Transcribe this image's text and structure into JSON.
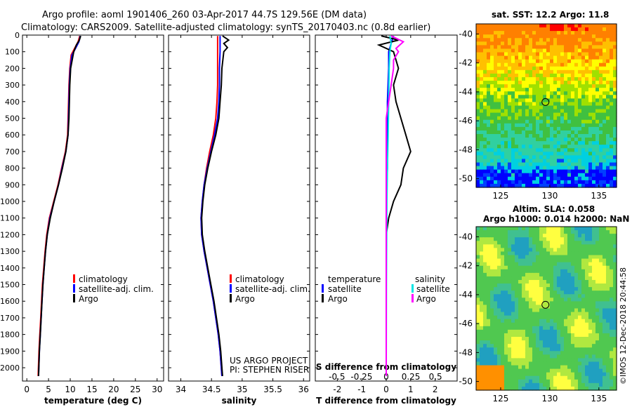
{
  "header": {
    "line1": "Argo profile: aoml 1901406_260 03-Apr-2017 44.7S 129.56E (DM data)",
    "line2": "Climatology: CARS2009. Satellite-adjusted climatology: synTS_20170403.nc (0.8d earlier)"
  },
  "colors": {
    "climatology": "#ff0000",
    "satellite": "#0000ff",
    "argo": "#000000",
    "salinity_satellite": "#00e5e5",
    "salinity_argo": "#ff00ff"
  },
  "chart_data": [
    {
      "type": "line",
      "panel": "temperature",
      "xlabel": "temperature (deg C)",
      "xlim": [
        -1,
        31.5
      ],
      "xticks": [
        0,
        5,
        10,
        15,
        20,
        25,
        30
      ],
      "ylim": [
        2080,
        0
      ],
      "yticks": [
        0,
        100,
        200,
        300,
        400,
        500,
        600,
        700,
        800,
        900,
        1000,
        1100,
        1200,
        1300,
        1400,
        1500,
        1600,
        1700,
        1800,
        1900,
        2000
      ],
      "legend": [
        "climatology",
        "satellite-adj. clim.",
        "Argo"
      ],
      "series": [
        {
          "name": "climatology",
          "values": [
            [
              12.2,
              5
            ],
            [
              11.8,
              40
            ],
            [
              11.0,
              80
            ],
            [
              10.2,
              120
            ],
            [
              9.9,
              200
            ],
            [
              9.7,
              300
            ],
            [
              9.6,
              400
            ],
            [
              9.5,
              500
            ],
            [
              9.4,
              600
            ],
            [
              8.9,
              700
            ],
            [
              8.0,
              800
            ],
            [
              7.2,
              900
            ],
            [
              6.2,
              1000
            ],
            [
              5.2,
              1100
            ],
            [
              4.6,
              1200
            ],
            [
              4.2,
              1300
            ],
            [
              3.9,
              1400
            ],
            [
              3.6,
              1500
            ],
            [
              3.4,
              1600
            ],
            [
              3.2,
              1700
            ],
            [
              3.0,
              1800
            ],
            [
              2.8,
              1900
            ],
            [
              2.6,
              2050
            ]
          ]
        },
        {
          "name": "satellite-adj. clim.",
          "values": [
            [
              12.3,
              5
            ],
            [
              12.0,
              40
            ],
            [
              11.2,
              80
            ],
            [
              10.4,
              120
            ],
            [
              10.0,
              200
            ],
            [
              9.8,
              300
            ],
            [
              9.7,
              400
            ],
            [
              9.6,
              500
            ],
            [
              9.5,
              600
            ],
            [
              9.0,
              700
            ],
            [
              8.1,
              800
            ],
            [
              7.3,
              900
            ],
            [
              6.3,
              1000
            ],
            [
              5.3,
              1100
            ],
            [
              4.7,
              1200
            ],
            [
              4.3,
              1300
            ],
            [
              4.0,
              1400
            ],
            [
              3.7,
              1500
            ],
            [
              3.5,
              1600
            ],
            [
              3.3,
              1700
            ],
            [
              3.1,
              1800
            ],
            [
              2.9,
              1900
            ],
            [
              2.7,
              2050
            ]
          ]
        },
        {
          "name": "Argo",
          "values": [
            [
              12.4,
              5
            ],
            [
              12.1,
              30
            ],
            [
              11.4,
              60
            ],
            [
              10.8,
              100
            ],
            [
              10.1,
              200
            ],
            [
              9.9,
              300
            ],
            [
              9.8,
              400
            ],
            [
              9.7,
              500
            ],
            [
              9.5,
              600
            ],
            [
              9.0,
              700
            ],
            [
              8.2,
              800
            ],
            [
              7.3,
              900
            ],
            [
              6.3,
              1000
            ],
            [
              5.4,
              1100
            ],
            [
              4.7,
              1200
            ],
            [
              4.3,
              1300
            ],
            [
              4.0,
              1400
            ],
            [
              3.7,
              1500
            ],
            [
              3.5,
              1600
            ],
            [
              3.3,
              1700
            ],
            [
              3.1,
              1800
            ],
            [
              2.9,
              1900
            ],
            [
              2.7,
              2050
            ]
          ]
        }
      ]
    },
    {
      "type": "line",
      "panel": "salinity",
      "xlabel": "salinity",
      "xlim": [
        33.8,
        36.1
      ],
      "xticks": [
        34,
        34.5,
        35,
        35.5,
        36
      ],
      "xticklabels": [
        "34",
        "34.5",
        "35",
        "35.5",
        "36"
      ],
      "ylim": [
        2080,
        0
      ],
      "legend": [
        "climatology",
        "satellite-adj. clim.",
        "Argo"
      ],
      "credits": [
        "US ARGO PROJECT",
        "PI: STEPHEN RISER"
      ],
      "series": [
        {
          "name": "climatology",
          "values": [
            [
              34.6,
              5
            ],
            [
              34.6,
              100
            ],
            [
              34.6,
              200
            ],
            [
              34.6,
              300
            ],
            [
              34.59,
              400
            ],
            [
              34.57,
              500
            ],
            [
              34.53,
              600
            ],
            [
              34.47,
              700
            ],
            [
              34.42,
              800
            ],
            [
              34.38,
              900
            ],
            [
              34.35,
              1000
            ],
            [
              34.33,
              1100
            ],
            [
              34.34,
              1200
            ],
            [
              34.38,
              1300
            ],
            [
              34.43,
              1400
            ],
            [
              34.48,
              1500
            ],
            [
              34.53,
              1600
            ],
            [
              34.57,
              1700
            ],
            [
              34.61,
              1800
            ],
            [
              34.64,
              1900
            ],
            [
              34.67,
              2050
            ]
          ]
        },
        {
          "name": "satellite-adj. clim.",
          "values": [
            [
              34.64,
              5
            ],
            [
              34.64,
              100
            ],
            [
              34.63,
              200
            ],
            [
              34.63,
              300
            ],
            [
              34.62,
              400
            ],
            [
              34.6,
              500
            ],
            [
              34.55,
              600
            ],
            [
              34.49,
              700
            ],
            [
              34.43,
              800
            ],
            [
              34.38,
              900
            ],
            [
              34.35,
              1000
            ],
            [
              34.33,
              1100
            ],
            [
              34.34,
              1200
            ],
            [
              34.38,
              1300
            ],
            [
              34.43,
              1400
            ],
            [
              34.48,
              1500
            ],
            [
              34.53,
              1600
            ],
            [
              34.57,
              1700
            ],
            [
              34.61,
              1800
            ],
            [
              34.64,
              1900
            ],
            [
              34.67,
              2050
            ]
          ]
        },
        {
          "name": "Argo",
          "values": [
            [
              34.68,
              5
            ],
            [
              34.78,
              30
            ],
            [
              34.7,
              50
            ],
            [
              34.76,
              75
            ],
            [
              34.7,
              100
            ],
            [
              34.67,
              200
            ],
            [
              34.66,
              300
            ],
            [
              34.64,
              400
            ],
            [
              34.62,
              500
            ],
            [
              34.57,
              600
            ],
            [
              34.5,
              700
            ],
            [
              34.44,
              800
            ],
            [
              34.39,
              900
            ],
            [
              34.36,
              1000
            ],
            [
              34.34,
              1100
            ],
            [
              34.35,
              1200
            ],
            [
              34.39,
              1300
            ],
            [
              34.44,
              1400
            ],
            [
              34.49,
              1500
            ],
            [
              34.54,
              1600
            ],
            [
              34.58,
              1700
            ],
            [
              34.62,
              1800
            ],
            [
              34.65,
              1900
            ],
            [
              34.68,
              2050
            ]
          ]
        }
      ]
    },
    {
      "type": "line",
      "panel": "differences",
      "xlabel": "T difference from climatology",
      "xlim": [
        -2.9,
        2.9
      ],
      "xticks": [
        -2,
        -1,
        0,
        1,
        2
      ],
      "xticklabels": [
        "-2",
        "-1",
        "0",
        "1",
        "2"
      ],
      "top_xlabel": "S difference from climatology",
      "top_xticks": [
        -0.5,
        -0.25,
        0,
        0.25,
        0.5
      ],
      "top_xticklabels": [
        "-0.5",
        "-0.25",
        "0",
        "0.25",
        "0.5"
      ],
      "ylim": [
        2080,
        0
      ],
      "legend": {
        "left_title": "temperature",
        "left": [
          "satellite",
          "Argo"
        ],
        "right_title": "salinity",
        "right": [
          "satellite",
          "Argo"
        ]
      },
      "series": [
        {
          "name": "temperature satellite",
          "values": [
            [
              0.3,
              5
            ],
            [
              0.2,
              50
            ],
            [
              0.1,
              100
            ],
            [
              0.1,
              200
            ],
            [
              0.05,
              400
            ],
            [
              0.05,
              600
            ],
            [
              0.05,
              800
            ],
            [
              0.0,
              1000
            ],
            [
              0.0,
              1200
            ],
            [
              0.0,
              1500
            ],
            [
              0.0,
              2050
            ]
          ]
        },
        {
          "name": "temperature Argo",
          "values": [
            [
              -0.2,
              5
            ],
            [
              0.5,
              30
            ],
            [
              -0.3,
              60
            ],
            [
              0.3,
              100
            ],
            [
              0.5,
              200
            ],
            [
              0.3,
              300
            ],
            [
              0.4,
              400
            ],
            [
              0.6,
              500
            ],
            [
              0.8,
              600
            ],
            [
              1.0,
              700
            ],
            [
              0.7,
              800
            ],
            [
              0.6,
              900
            ],
            [
              0.3,
              1000
            ],
            [
              0.1,
              1100
            ],
            [
              0.0,
              1200
            ],
            [
              0.0,
              1300
            ],
            [
              0.0,
              2050
            ]
          ]
        },
        {
          "name": "salinity satellite",
          "values": [
            [
              0.15,
              5
            ],
            [
              0.2,
              50
            ],
            [
              0.15,
              100
            ],
            [
              0.12,
              200
            ],
            [
              0.1,
              400
            ],
            [
              0.08,
              600
            ],
            [
              0.05,
              800
            ],
            [
              0.03,
              1000
            ],
            [
              0.02,
              1200
            ],
            [
              0.01,
              1500
            ],
            [
              0.0,
              2050
            ]
          ]
        },
        {
          "name": "salinity Argo",
          "values": [
            [
              0.2,
              5
            ],
            [
              0.7,
              40
            ],
            [
              0.4,
              80
            ],
            [
              0.5,
              100
            ],
            [
              0.3,
              150
            ],
            [
              0.3,
              200
            ],
            [
              0.2,
              300
            ],
            [
              0.1,
              400
            ],
            [
              0.0,
              500
            ],
            [
              0.0,
              800
            ],
            [
              0.0,
              1100
            ],
            [
              0.0,
              1400
            ],
            [
              0.0,
              2050
            ]
          ]
        }
      ]
    },
    {
      "type": "heatmap",
      "panel": "sst_map",
      "title": "sat. SST: 12.2 Argo: 11.8",
      "xlim": [
        122.5,
        136.8
      ],
      "ylim": [
        -50.6,
        -39.3
      ],
      "xticks": [
        125,
        130,
        135
      ],
      "yticks": [
        -40,
        -42,
        -44,
        -46,
        -48,
        -50
      ],
      "marker": [
        129.56,
        -44.7
      ]
    },
    {
      "type": "heatmap",
      "panel": "sla_map",
      "title": "Altim. SLA: 0.058",
      "subtitle": "Argo h1000: 0.014 h2000: NaN",
      "xlim": [
        122.5,
        136.8
      ],
      "ylim": [
        -50.6,
        -39.3
      ],
      "xticks": [
        125,
        130,
        135
      ],
      "yticks": [
        -40,
        -42,
        -44,
        -46,
        -48,
        -50
      ],
      "marker": [
        129.56,
        -44.7
      ]
    }
  ],
  "watermark": "©IMOS 12-Dec-2018 20:44:58"
}
